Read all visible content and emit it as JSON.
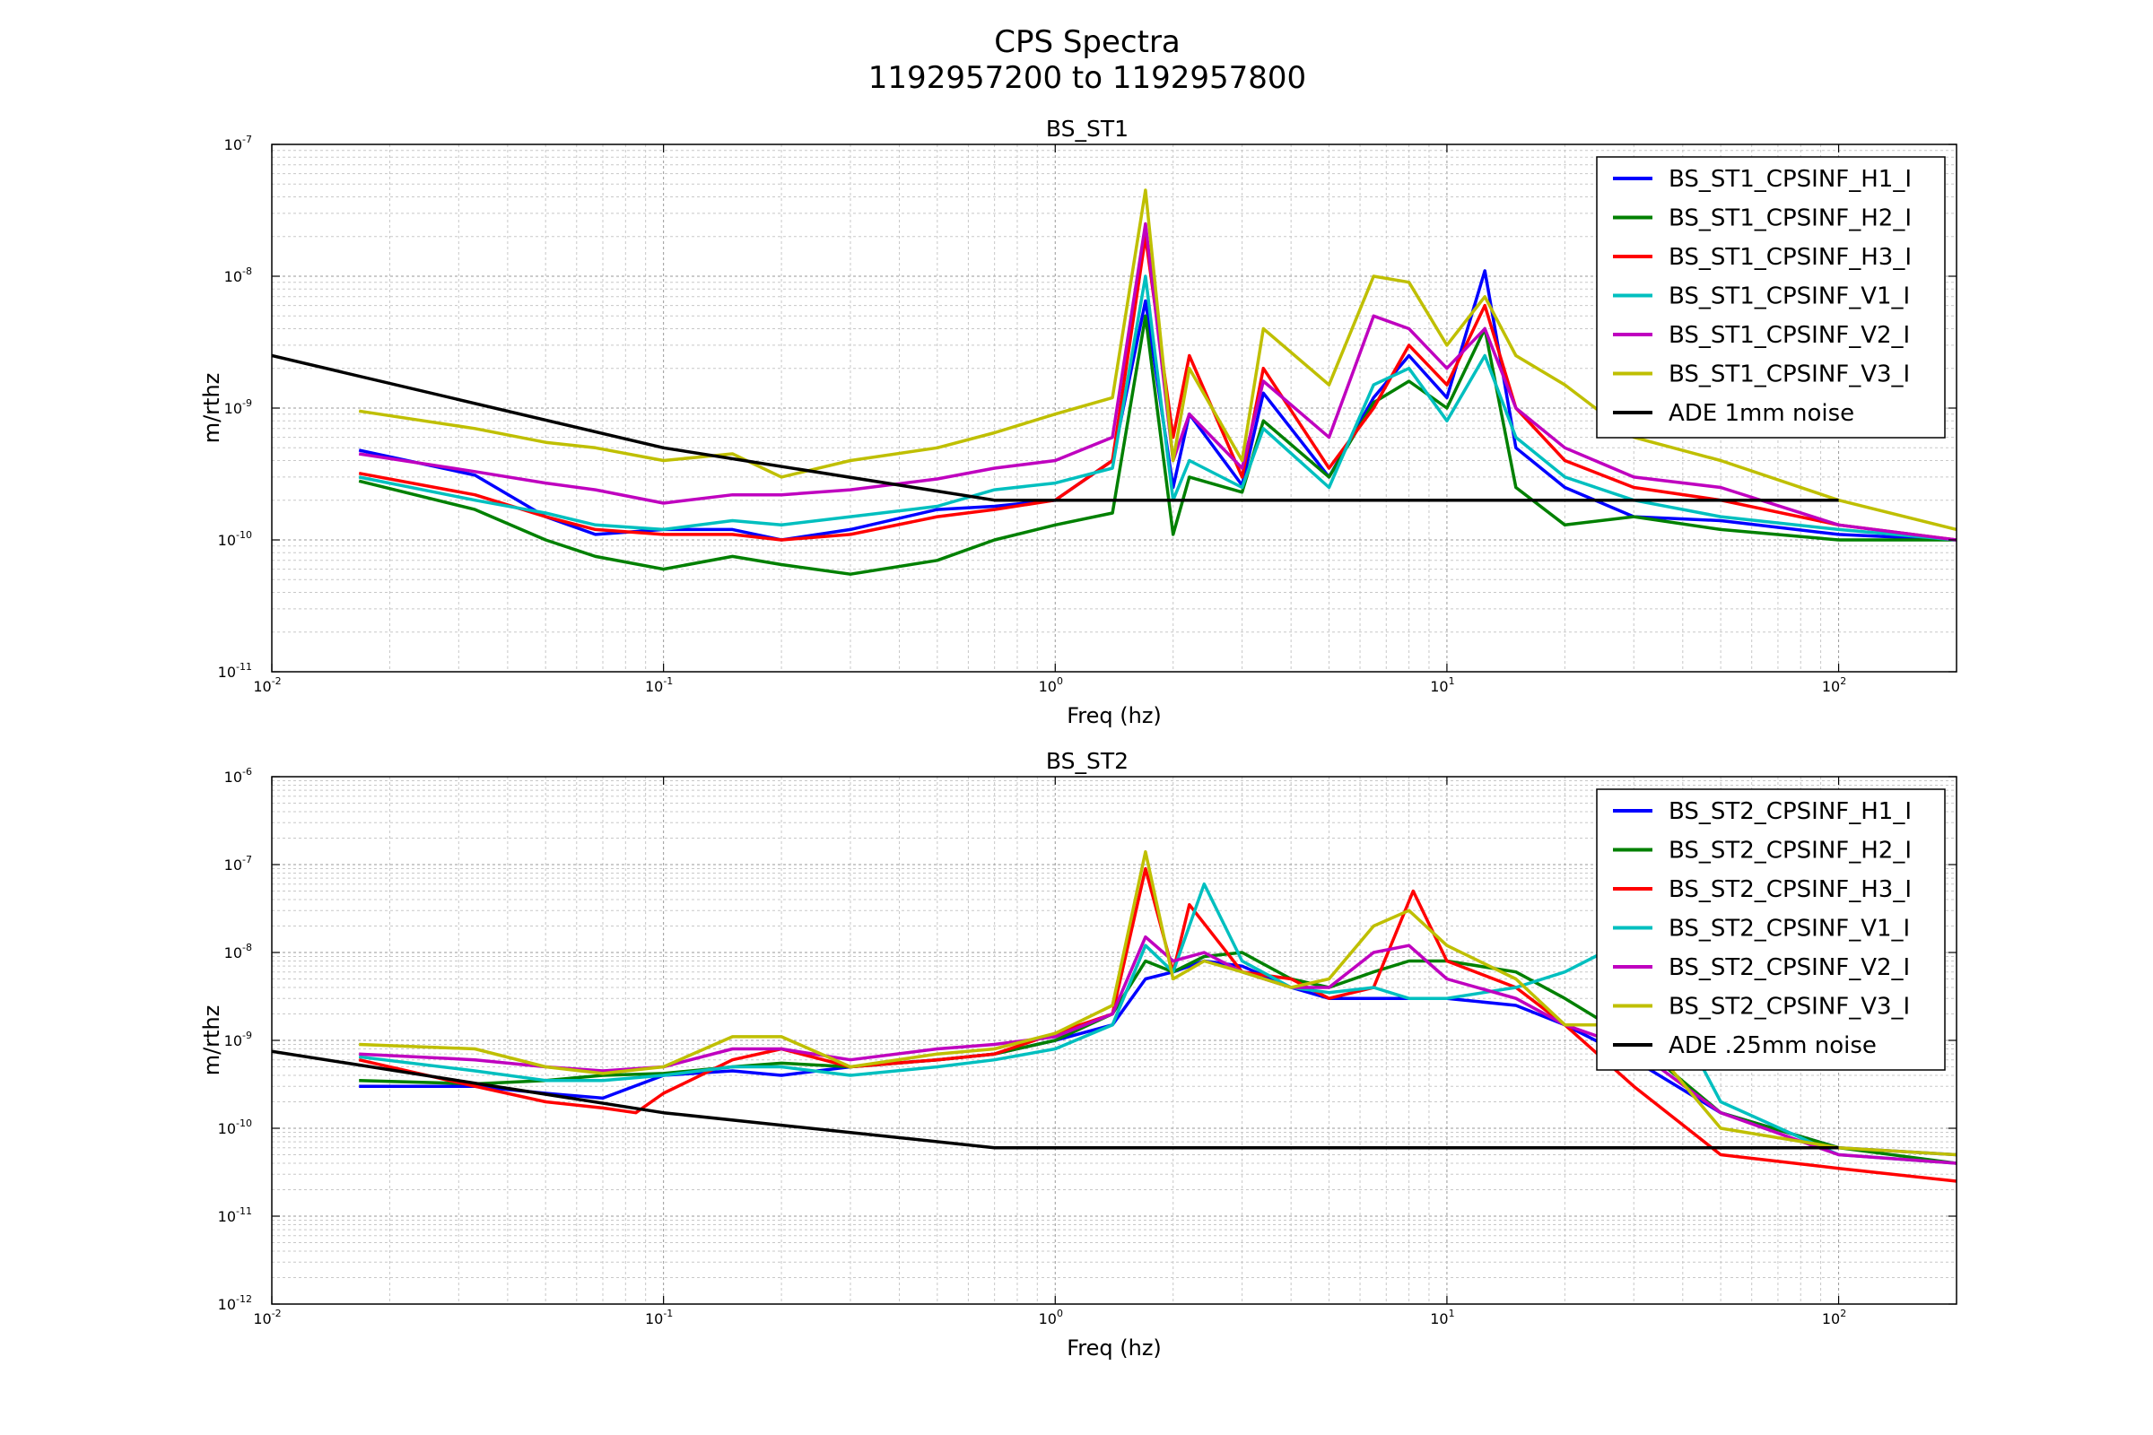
{
  "figure": {
    "title_line1": "CPS Spectra",
    "title_line2": "1192957200 to 1192957800"
  },
  "chart_data": [
    {
      "type": "line",
      "title": "BS_ST1",
      "xlabel": "Freq (hz)",
      "ylabel": "m/rthz",
      "xscale": "log",
      "yscale": "log",
      "xlim": [
        0.01,
        200
      ],
      "ylim": [
        1e-11,
        1e-07
      ],
      "xticks": [
        0.01,
        0.1,
        1,
        10,
        100
      ],
      "xtick_exponents": [
        "-2",
        "-1",
        "0",
        "1",
        "2"
      ],
      "yticks": [
        1e-11,
        1e-10,
        1e-09,
        1e-08,
        1e-07
      ],
      "ytick_exponents": [
        "-11",
        "-10",
        "-9",
        "-8",
        "-7"
      ],
      "grid": true,
      "legend_position": "top-right",
      "series": [
        {
          "name": "BS_ST1_CPSINF_H1_I",
          "color": "#0000ff",
          "x": [
            0.0167,
            0.033,
            0.05,
            0.067,
            0.1,
            0.15,
            0.2,
            0.3,
            0.5,
            0.7,
            1,
            1.4,
            1.7,
            2,
            2.2,
            3,
            3.4,
            5,
            6.5,
            8,
            10,
            12.5,
            15,
            20,
            30,
            50,
            100,
            200
          ],
          "y": [
            4.8e-10,
            3.1e-10,
            1.5e-10,
            1.1e-10,
            1.2e-10,
            1.2e-10,
            1e-10,
            1.2e-10,
            1.7e-10,
            1.8e-10,
            2e-10,
            4e-10,
            6.5e-09,
            2.5e-10,
            9e-10,
            2.6e-10,
            1.3e-09,
            3e-10,
            1.2e-09,
            2.5e-09,
            1.2e-09,
            1.1e-08,
            5e-10,
            2.5e-10,
            1.5e-10,
            1.4e-10,
            1.1e-10,
            1e-10
          ]
        },
        {
          "name": "BS_ST1_CPSINF_H2_I",
          "color": "#008000",
          "x": [
            0.0167,
            0.033,
            0.05,
            0.067,
            0.1,
            0.15,
            0.2,
            0.3,
            0.5,
            0.7,
            1,
            1.4,
            1.7,
            2,
            2.2,
            3,
            3.4,
            5,
            6.5,
            8,
            10,
            12.5,
            15,
            20,
            30,
            50,
            100,
            200
          ],
          "y": [
            2.8e-10,
            1.7e-10,
            1e-10,
            7.5e-11,
            6e-11,
            7.5e-11,
            6.5e-11,
            5.5e-11,
            7e-11,
            1e-10,
            1.3e-10,
            1.6e-10,
            5e-09,
            1.1e-10,
            3e-10,
            2.3e-10,
            8e-10,
            3e-10,
            1.1e-09,
            1.6e-09,
            1e-09,
            4e-09,
            2.5e-10,
            1.3e-10,
            1.5e-10,
            1.2e-10,
            1e-10,
            1e-10
          ]
        },
        {
          "name": "BS_ST1_CPSINF_H3_I",
          "color": "#ff0000",
          "x": [
            0.0167,
            0.033,
            0.05,
            0.067,
            0.1,
            0.15,
            0.2,
            0.3,
            0.5,
            0.7,
            1,
            1.4,
            1.7,
            2,
            2.2,
            3,
            3.4,
            5,
            6.5,
            8,
            10,
            12.5,
            15,
            20,
            30,
            50,
            100,
            200
          ],
          "y": [
            3.2e-10,
            2.2e-10,
            1.5e-10,
            1.2e-10,
            1.1e-10,
            1.1e-10,
            1e-10,
            1.1e-10,
            1.5e-10,
            1.7e-10,
            2e-10,
            4e-10,
            2e-08,
            6e-10,
            2.5e-09,
            3e-10,
            2e-09,
            3.5e-10,
            1e-09,
            3e-09,
            1.5e-09,
            6e-09,
            1e-09,
            4e-10,
            2.5e-10,
            2e-10,
            1.3e-10,
            1e-10
          ]
        },
        {
          "name": "BS_ST1_CPSINF_V1_I",
          "color": "#00bfbf",
          "x": [
            0.0167,
            0.033,
            0.05,
            0.067,
            0.1,
            0.15,
            0.2,
            0.3,
            0.5,
            0.7,
            1,
            1.4,
            1.7,
            2,
            2.2,
            3,
            3.4,
            5,
            6.5,
            8,
            10,
            12.5,
            15,
            20,
            30,
            50,
            100,
            200
          ],
          "y": [
            3e-10,
            2e-10,
            1.6e-10,
            1.3e-10,
            1.2e-10,
            1.4e-10,
            1.3e-10,
            1.5e-10,
            1.8e-10,
            2.4e-10,
            2.7e-10,
            3.5e-10,
            1e-08,
            2e-10,
            4e-10,
            2.5e-10,
            7e-10,
            2.5e-10,
            1.5e-09,
            2e-09,
            8e-10,
            2.5e-09,
            6e-10,
            3e-10,
            2e-10,
            1.5e-10,
            1.2e-10,
            1e-10
          ]
        },
        {
          "name": "BS_ST1_CPSINF_V2_I",
          "color": "#bf00bf",
          "x": [
            0.0167,
            0.033,
            0.05,
            0.067,
            0.1,
            0.15,
            0.2,
            0.3,
            0.5,
            0.7,
            1,
            1.4,
            1.7,
            2,
            2.2,
            3,
            3.4,
            5,
            6.5,
            8,
            10,
            12.5,
            15,
            20,
            30,
            50,
            100,
            200
          ],
          "y": [
            4.5e-10,
            3.3e-10,
            2.7e-10,
            2.4e-10,
            1.9e-10,
            2.2e-10,
            2.2e-10,
            2.4e-10,
            2.9e-10,
            3.5e-10,
            4e-10,
            6e-10,
            2.5e-08,
            4e-10,
            9e-10,
            3.5e-10,
            1.6e-09,
            6e-10,
            5e-09,
            4e-09,
            2e-09,
            4e-09,
            1e-09,
            5e-10,
            3e-10,
            2.5e-10,
            1.3e-10,
            1e-10
          ]
        },
        {
          "name": "BS_ST1_CPSINF_V3_I",
          "color": "#bfbf00",
          "x": [
            0.0167,
            0.033,
            0.05,
            0.067,
            0.1,
            0.15,
            0.2,
            0.3,
            0.5,
            0.7,
            1,
            1.4,
            1.7,
            2,
            2.2,
            3,
            3.4,
            5,
            6.5,
            8,
            10,
            12.5,
            15,
            20,
            30,
            50,
            100,
            200
          ],
          "y": [
            9.5e-10,
            7e-10,
            5.5e-10,
            5e-10,
            4e-10,
            4.5e-10,
            3e-10,
            4e-10,
            5e-10,
            6.5e-10,
            9e-10,
            1.2e-09,
            4.5e-08,
            4e-10,
            2e-09,
            4e-10,
            4e-09,
            1.5e-09,
            1e-08,
            9e-09,
            3e-09,
            7e-09,
            2.5e-09,
            1.5e-09,
            6e-10,
            4e-10,
            2e-10,
            1.2e-10
          ]
        },
        {
          "name": "ADE 1mm noise",
          "color": "#000000",
          "x": [
            0.01,
            0.1,
            0.7,
            100
          ],
          "y": [
            2.5e-09,
            5e-10,
            2e-10,
            2e-10
          ]
        }
      ]
    },
    {
      "type": "line",
      "title": "BS_ST2",
      "xlabel": "Freq (hz)",
      "ylabel": "m/rthz",
      "xscale": "log",
      "yscale": "log",
      "xlim": [
        0.01,
        200
      ],
      "ylim": [
        1e-12,
        1e-06
      ],
      "xticks": [
        0.01,
        0.1,
        1,
        10,
        100
      ],
      "xtick_exponents": [
        "-2",
        "-1",
        "0",
        "1",
        "2"
      ],
      "yticks": [
        1e-12,
        1e-11,
        1e-10,
        1e-09,
        1e-08,
        1e-07,
        1e-06
      ],
      "ytick_exponents": [
        "-12",
        "-11",
        "-10",
        "-9",
        "-8",
        "-7",
        "-6"
      ],
      "grid": true,
      "legend_position": "top-right",
      "series": [
        {
          "name": "BS_ST2_CPSINF_H1_I",
          "color": "#0000ff",
          "x": [
            0.0167,
            0.033,
            0.05,
            0.07,
            0.1,
            0.15,
            0.2,
            0.3,
            0.5,
            0.7,
            1,
            1.4,
            1.7,
            2,
            2.4,
            3,
            4,
            5,
            6.5,
            8,
            10,
            15,
            20,
            30,
            50,
            100,
            200
          ],
          "y": [
            3e-10,
            3e-10,
            2.5e-10,
            2.2e-10,
            4e-10,
            4.5e-10,
            4e-10,
            5e-10,
            6e-10,
            7e-10,
            1e-09,
            1.5e-09,
            5e-09,
            6e-09,
            8e-09,
            7e-09,
            4e-09,
            3e-09,
            3e-09,
            3e-09,
            3e-09,
            2.5e-09,
            1.5e-09,
            6e-10,
            1.5e-10,
            6e-11,
            5e-11
          ]
        },
        {
          "name": "BS_ST2_CPSINF_H2_I",
          "color": "#008000",
          "x": [
            0.0167,
            0.033,
            0.05,
            0.07,
            0.1,
            0.15,
            0.2,
            0.3,
            0.5,
            0.7,
            1,
            1.4,
            1.7,
            2,
            2.4,
            3,
            4,
            5,
            6.5,
            8,
            10,
            15,
            20,
            30,
            50,
            100,
            200
          ],
          "y": [
            3.5e-10,
            3.2e-10,
            3.5e-10,
            4e-10,
            4.2e-10,
            5e-10,
            5.5e-10,
            5e-10,
            6e-10,
            7e-10,
            1e-09,
            2e-09,
            8e-09,
            6e-09,
            9e-09,
            1e-08,
            5e-09,
            4e-09,
            6e-09,
            8e-09,
            8e-09,
            6e-09,
            3e-09,
            1e-09,
            1.5e-10,
            6e-11,
            4e-11
          ]
        },
        {
          "name": "BS_ST2_CPSINF_H3_I",
          "color": "#ff0000",
          "x": [
            0.0167,
            0.033,
            0.05,
            0.07,
            0.085,
            0.1,
            0.15,
            0.2,
            0.3,
            0.5,
            0.7,
            1,
            1.4,
            1.7,
            2,
            2.2,
            3,
            4,
            5,
            6.5,
            8.2,
            10,
            15,
            20,
            30,
            50,
            100,
            200
          ],
          "y": [
            6e-10,
            3e-10,
            2e-10,
            1.7e-10,
            1.5e-10,
            2.5e-10,
            6e-10,
            8e-10,
            5e-10,
            6e-10,
            7e-10,
            1.2e-09,
            2e-09,
            9e-08,
            6e-09,
            3.5e-08,
            6e-09,
            5e-09,
            3e-09,
            4e-09,
            5e-08,
            8e-09,
            4e-09,
            1.5e-09,
            3e-10,
            5e-11,
            3.5e-11,
            2.5e-11
          ]
        },
        {
          "name": "BS_ST2_CPSINF_V1_I",
          "color": "#00bfbf",
          "x": [
            0.0167,
            0.033,
            0.05,
            0.07,
            0.1,
            0.15,
            0.2,
            0.3,
            0.5,
            0.7,
            1,
            1.4,
            1.7,
            2,
            2.4,
            3,
            4,
            5,
            6.5,
            8,
            10,
            15,
            20,
            30,
            50,
            100,
            200
          ],
          "y": [
            6.5e-10,
            4.5e-10,
            3.5e-10,
            3.5e-10,
            4e-10,
            5e-10,
            5e-10,
            4e-10,
            5e-10,
            6e-10,
            8e-10,
            1.5e-09,
            1.2e-08,
            6e-09,
            6e-08,
            8e-09,
            4e-09,
            3.5e-09,
            4e-09,
            3e-09,
            3e-09,
            4e-09,
            6e-09,
            1.5e-08,
            2e-10,
            5e-11,
            4e-11
          ]
        },
        {
          "name": "BS_ST2_CPSINF_V2_I",
          "color": "#bf00bf",
          "x": [
            0.0167,
            0.033,
            0.05,
            0.07,
            0.1,
            0.15,
            0.2,
            0.3,
            0.5,
            0.7,
            1,
            1.4,
            1.7,
            2,
            2.4,
            3,
            4,
            5,
            6.5,
            8,
            10,
            15,
            20,
            30,
            50,
            100,
            200
          ],
          "y": [
            7e-10,
            6e-10,
            5e-10,
            4.5e-10,
            5e-10,
            8e-10,
            8e-10,
            6e-10,
            8e-10,
            9e-10,
            1.1e-09,
            2e-09,
            1.5e-08,
            8e-09,
            1e-08,
            6e-09,
            4e-09,
            4e-09,
            1e-08,
            1.2e-08,
            5e-09,
            3e-09,
            1.5e-09,
            8e-10,
            1.5e-10,
            5e-11,
            4e-11
          ]
        },
        {
          "name": "BS_ST2_CPSINF_V3_I",
          "color": "#bfbf00",
          "x": [
            0.0167,
            0.033,
            0.05,
            0.07,
            0.1,
            0.15,
            0.2,
            0.3,
            0.5,
            0.7,
            1,
            1.4,
            1.7,
            2,
            2.4,
            3,
            4,
            5,
            6.5,
            8,
            10,
            15,
            20,
            30,
            50,
            100,
            200
          ],
          "y": [
            9e-10,
            8e-10,
            5e-10,
            4.2e-10,
            5e-10,
            1.1e-09,
            1.1e-09,
            5e-10,
            7e-10,
            8e-10,
            1.2e-09,
            2.5e-09,
            1.4e-07,
            5e-09,
            8e-09,
            6e-09,
            4e-09,
            5e-09,
            2e-08,
            3e-08,
            1.2e-08,
            5e-09,
            1.5e-09,
            1.5e-09,
            1e-10,
            6e-11,
            5e-11
          ]
        },
        {
          "name": "ADE .25mm noise",
          "color": "#000000",
          "x": [
            0.01,
            0.1,
            0.7,
            100
          ],
          "y": [
            7.5e-10,
            1.5e-10,
            6e-11,
            6e-11
          ]
        }
      ]
    }
  ]
}
